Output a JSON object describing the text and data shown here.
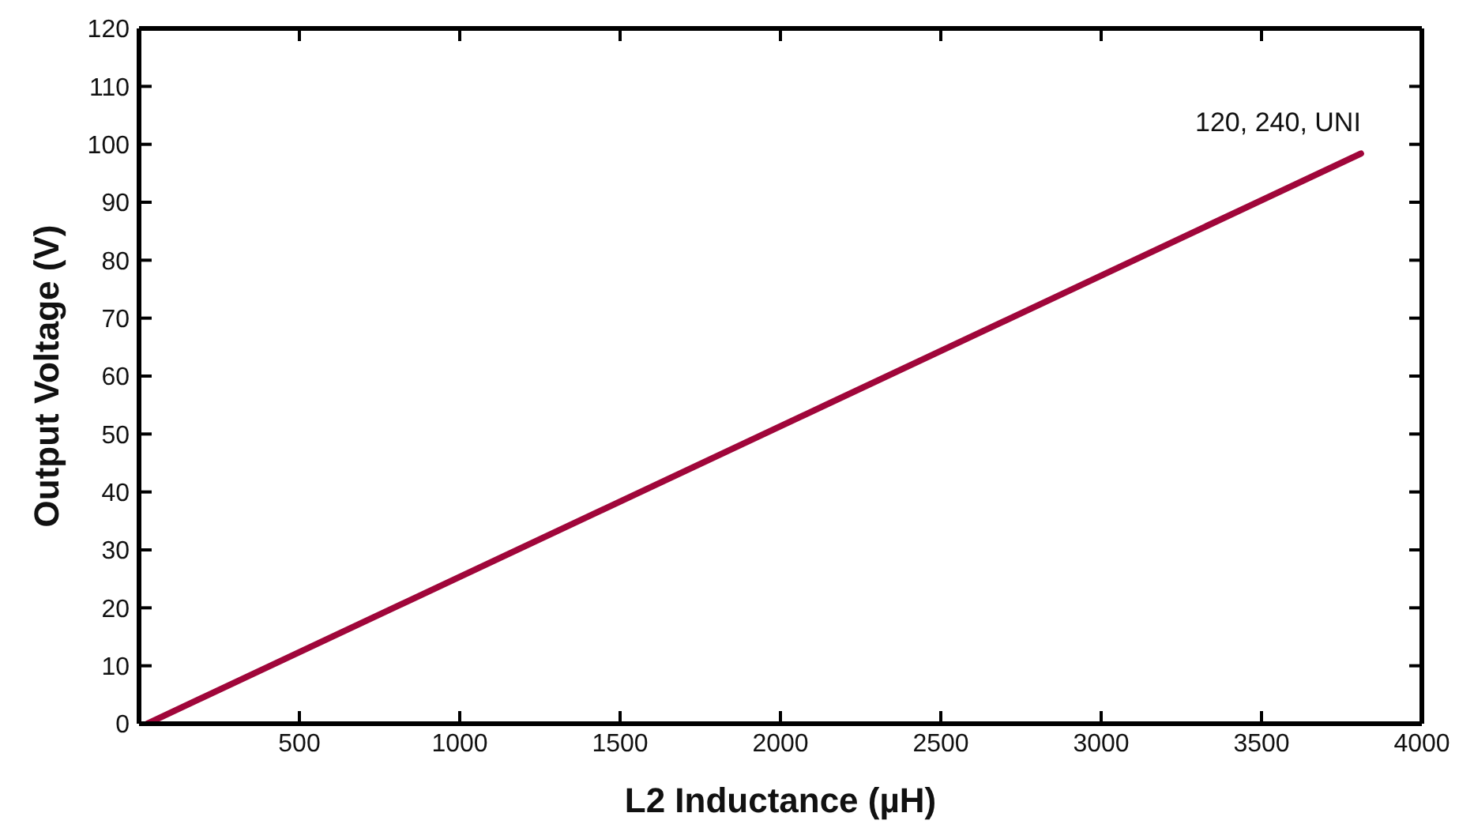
{
  "chart_data": {
    "type": "line",
    "xlabel": "L2 Inductance (µH)",
    "ylabel": "Output Voltage (V)",
    "x": [
      25,
      3810
    ],
    "series": [
      {
        "name": "120, 240, UNI",
        "color": "#a0063a",
        "values": [
          0,
          98.4
        ]
      }
    ],
    "xlim": [
      0,
      4000
    ],
    "xticks": [
      {
        "value": 0,
        "label": null
      },
      500,
      1000,
      1500,
      2000,
      2500,
      3000,
      3500,
      4000
    ],
    "ylim": [
      0,
      120
    ],
    "yticks": [
      0,
      10,
      20,
      30,
      40,
      50,
      60,
      70,
      80,
      90,
      100,
      110,
      120
    ],
    "grid": false,
    "legend": false,
    "marker": "none",
    "line_style": "solid"
  }
}
